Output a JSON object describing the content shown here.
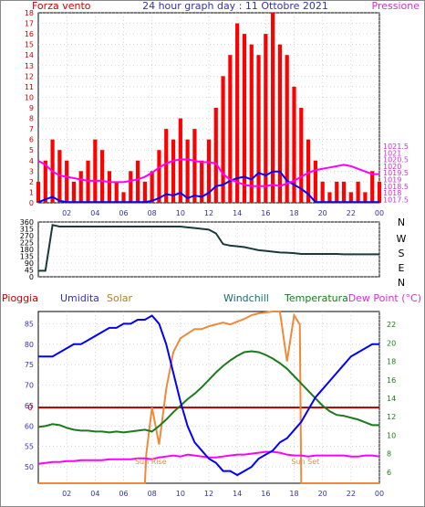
{
  "page_title": "24 hour graph day : 11 Ottobre 2021",
  "colors": {
    "wind": "#ff0000",
    "gust": "#0000ff",
    "pressure": "#ff00ff",
    "direction": "#1a3a3a",
    "humidity": "#0000ff",
    "solar": "#f08a3a",
    "temperature": "#1c7a1c",
    "dewpoint": "#ff00ff",
    "rain": "#aa0000",
    "axis_left_top": "#cc0000",
    "axis_right_top": "#cc33cc",
    "axis_left_bottom": "#3333aa",
    "axis_right_bottom": "#1c7a1c"
  },
  "chart_data": [
    {
      "type": "line",
      "id": "wind_pressure",
      "labels": {
        "left": "Forza vento",
        "right": "Pressione",
        "title": "24 hour graph day : 11 Ottobre 2021"
      },
      "x_ticks": [
        "02",
        "04",
        "06",
        "08",
        "10",
        "12",
        "14",
        "16",
        "18",
        "20",
        "22",
        "00"
      ],
      "xlim": [
        0,
        24
      ],
      "y_left": {
        "lim": [
          0,
          18
        ],
        "ticks": [
          0,
          1,
          2,
          3,
          4,
          5,
          6,
          7,
          8,
          9,
          10,
          11,
          12,
          13,
          14,
          15,
          16,
          17,
          18
        ]
      },
      "y_right": {
        "lim": [
          1017.25,
          1031.5
        ],
        "ticks": [
          "1017.5",
          "1018",
          "1018.5",
          "1019",
          "1019.5",
          "1020",
          "1020.5",
          "1021",
          "1021.5"
        ]
      },
      "series": [
        {
          "key": "wind_avg",
          "axis": "right",
          "x": [
            0,
            0.5,
            1,
            1.5,
            2,
            2.5,
            3,
            3.5,
            4,
            4.5,
            5,
            5.5,
            6,
            6.5,
            7,
            7.5,
            8,
            8.5,
            9,
            9.5,
            10,
            10.5,
            11,
            11.5,
            12,
            12.5,
            13,
            13.5,
            14,
            14.5,
            15,
            15.5,
            16,
            16.5,
            17,
            17.5,
            18,
            18.5,
            19,
            19.5,
            20,
            20.5,
            21,
            21.5,
            22,
            22.5,
            23,
            23.5,
            24
          ],
          "values": [
            1017.3,
            1017.5,
            1017.7,
            1017.4,
            1017.3,
            1017.3,
            1017.3,
            1017.3,
            1017.3,
            1017.3,
            1017.3,
            1017.3,
            1017.3,
            1017.3,
            1017.3,
            1017.3,
            1017.4,
            1017.6,
            1017.9,
            1017.8,
            1018.0,
            1017.6,
            1017.8,
            1017.7,
            1018.0,
            1018.5,
            1018.6,
            1018.9,
            1019.1,
            1019.2,
            1019.0,
            1019.5,
            1019.3,
            1019.6,
            1019.6,
            1018.9,
            1018.6,
            1018.3,
            1017.9,
            1017.3,
            1017.3,
            1017.3,
            1017.3,
            1017.3,
            1017.3,
            1017.3,
            1017.3,
            1017.3,
            1017.3
          ]
        },
        {
          "key": "pressure",
          "axis": "right",
          "x": [
            0,
            0.5,
            1,
            1.5,
            2,
            2.5,
            3,
            3.5,
            4,
            4.5,
            5,
            5.5,
            6,
            6.5,
            7,
            7.5,
            8,
            8.5,
            9,
            9.5,
            10,
            10.5,
            11,
            11.5,
            12,
            12.5,
            13,
            13.5,
            14,
            14.5,
            15,
            15.5,
            16,
            16.5,
            17,
            17.5,
            18,
            18.5,
            19,
            19.5,
            20,
            20.5,
            21,
            21.5,
            22,
            22.5,
            23,
            23.5,
            24
          ],
          "values": [
            1020.4,
            1020.1,
            1019.6,
            1019.3,
            1019.2,
            1019.1,
            1019.0,
            1018.9,
            1018.9,
            1018.9,
            1018.8,
            1018.8,
            1018.8,
            1018.9,
            1019.0,
            1019.2,
            1019.5,
            1019.9,
            1020.2,
            1020.4,
            1020.5,
            1020.5,
            1020.4,
            1020.3,
            1020.3,
            1020.2,
            1019.4,
            1019.0,
            1018.8,
            1018.6,
            1018.5,
            1018.5,
            1018.5,
            1018.6,
            1018.5,
            1018.7,
            1018.9,
            1019.2,
            1019.5,
            1019.7,
            1019.8,
            1019.9,
            1020.0,
            1020.1,
            1020.0,
            1019.8,
            1019.6,
            1019.4,
            1019.4
          ]
        }
      ],
      "bars": {
        "key": "wind_gust",
        "axis": "left",
        "x": [
          0,
          0.5,
          1,
          1.5,
          2,
          2.5,
          3,
          3.5,
          4,
          4.5,
          5,
          5.5,
          6,
          6.5,
          7,
          7.5,
          8,
          8.5,
          9,
          9.5,
          10,
          10.5,
          11,
          11.5,
          12,
          12.5,
          13,
          13.5,
          14,
          14.5,
          15,
          15.5,
          16,
          16.5,
          17,
          17.5,
          18,
          18.5,
          19,
          19.5,
          20,
          20.5,
          21,
          21.5,
          22,
          22.5,
          23,
          23.5,
          24
        ],
        "values": [
          2,
          4,
          6,
          5,
          4,
          2,
          3,
          4,
          6,
          5,
          3,
          2,
          1,
          3,
          4,
          2,
          3,
          5,
          7,
          6,
          8,
          6,
          7,
          4,
          6,
          9,
          12,
          14,
          17,
          16,
          15,
          14,
          16,
          18,
          15,
          14,
          11,
          9,
          6,
          4,
          2,
          1,
          2,
          2,
          1,
          2,
          1,
          3,
          2
        ]
      }
    },
    {
      "type": "line",
      "id": "wind_direction",
      "x_ticks": [
        "02",
        "04",
        "06",
        "08",
        "10",
        "12",
        "14",
        "16",
        "18",
        "20",
        "22",
        "00"
      ],
      "xlim": [
        0,
        24
      ],
      "y_left": {
        "lim": [
          0,
          360
        ],
        "ticks": [
          "0",
          "45",
          "90",
          "135",
          "180",
          "225",
          "270",
          "315",
          "360"
        ]
      },
      "y_right_labels": [
        "N",
        "W",
        "S",
        "E",
        "N"
      ],
      "series": [
        {
          "key": "direction",
          "x": [
            0,
            0.5,
            1,
            1.5,
            2,
            2.5,
            3,
            3.5,
            4,
            4.5,
            5,
            5.5,
            6,
            6.5,
            7,
            7.5,
            8,
            8.5,
            9,
            9.5,
            10,
            10.5,
            11,
            11.5,
            12,
            12.5,
            13,
            13.5,
            14,
            14.5,
            15,
            15.5,
            16,
            16.5,
            17,
            17.5,
            18,
            18.5,
            19,
            19.5,
            20,
            20.5,
            21,
            21.5,
            22,
            22.5,
            23,
            23.5,
            24
          ],
          "values": [
            40,
            40,
            340,
            330,
            330,
            330,
            330,
            330,
            330,
            330,
            330,
            330,
            330,
            330,
            330,
            330,
            330,
            330,
            330,
            330,
            330,
            325,
            320,
            315,
            310,
            285,
            215,
            205,
            200,
            195,
            185,
            175,
            170,
            165,
            160,
            158,
            155,
            150,
            150,
            150,
            150,
            150,
            150,
            148,
            148,
            148,
            148,
            148,
            148
          ]
        }
      ]
    },
    {
      "type": "line",
      "id": "temp_humidity",
      "labels": {
        "rain": "Pioggia",
        "humidity": "Umidita",
        "solar": "Solar",
        "windchill": "Windchill",
        "temperature": "Temperatura",
        "dewpoint": "Dew Point (°C)",
        "rain_zero": "0",
        "sun_rise": "Sun Rise",
        "sun_set": "Sun Set"
      },
      "x_ticks": [
        "02",
        "04",
        "06",
        "08",
        "10",
        "12",
        "14",
        "16",
        "18",
        "20",
        "22",
        "00"
      ],
      "xlim": [
        0,
        24
      ],
      "y_left": {
        "lim": [
          46,
          88
        ],
        "ticks": [
          "50",
          "55",
          "60",
          "65",
          "70",
          "75",
          "80",
          "85"
        ]
      },
      "y_right": {
        "lim": [
          4.8,
          23.4
        ],
        "ticks": [
          "6",
          "8",
          "10",
          "12",
          "14",
          "16",
          "18",
          "20",
          "22"
        ]
      },
      "series": [
        {
          "key": "humidity",
          "axis": "left",
          "x": [
            0,
            0.5,
            1,
            1.5,
            2,
            2.5,
            3,
            3.5,
            4,
            4.5,
            5,
            5.5,
            6,
            6.5,
            7,
            7.5,
            8,
            8.5,
            9,
            9.5,
            10,
            10.5,
            11,
            11.5,
            12,
            12.5,
            13,
            13.5,
            14,
            14.5,
            15,
            15.5,
            16,
            16.5,
            17,
            17.5,
            18,
            18.5,
            19,
            19.5,
            20,
            20.5,
            21,
            21.5,
            22,
            22.5,
            23,
            23.5,
            24
          ],
          "values": [
            77,
            77,
            77,
            78,
            79,
            80,
            80,
            81,
            82,
            83,
            84,
            84,
            85,
            85,
            86,
            86,
            87,
            85,
            80,
            73,
            66,
            60,
            56,
            54,
            52,
            51,
            49,
            49,
            48,
            49,
            50,
            52,
            53,
            54,
            56,
            57,
            59,
            61,
            64,
            67,
            69,
            71,
            73,
            75,
            77,
            78,
            79,
            80,
            80
          ]
        },
        {
          "key": "solar",
          "axis": "right",
          "x": [
            0,
            0.5,
            1,
            1.5,
            2,
            2.5,
            3,
            3.5,
            4,
            4.5,
            5,
            5.5,
            6,
            6.5,
            7,
            7.5,
            7.6,
            8,
            8.5,
            9,
            9.5,
            10,
            10.5,
            11,
            11.5,
            12,
            12.5,
            13,
            13.5,
            14,
            14.5,
            15,
            15.5,
            16,
            16.5,
            17,
            17.5,
            18,
            18.4,
            18.5,
            19,
            19.5,
            20,
            20.5,
            21,
            21.5,
            22,
            22.5,
            23,
            23.5,
            24
          ],
          "values": [
            4.8,
            4.8,
            4.8,
            4.8,
            4.8,
            4.8,
            4.8,
            4.8,
            4.8,
            4.8,
            4.8,
            4.8,
            4.8,
            4.8,
            4.8,
            4.8,
            8.0,
            13.0,
            9.0,
            15.0,
            19.0,
            20.5,
            21.0,
            21.5,
            21.5,
            21.8,
            22.0,
            22.2,
            22.0,
            22.3,
            22.6,
            23.0,
            23.2,
            23.3,
            23.4,
            23.4,
            18.0,
            23.0,
            22.0,
            4.8,
            4.8,
            4.8,
            4.8,
            4.8,
            4.8,
            4.8,
            4.8,
            4.8,
            4.8,
            4.8,
            4.8
          ]
        },
        {
          "key": "temperature",
          "axis": "right",
          "x": [
            0,
            0.5,
            1,
            1.5,
            2,
            2.5,
            3,
            3.5,
            4,
            4.5,
            5,
            5.5,
            6,
            6.5,
            7,
            7.5,
            8,
            8.5,
            9,
            9.5,
            10,
            10.5,
            11,
            11.5,
            12,
            12.5,
            13,
            13.5,
            14,
            14.5,
            15,
            15.5,
            16,
            16.5,
            17,
            17.5,
            18,
            18.5,
            19,
            19.5,
            20,
            20.5,
            21,
            21.5,
            22,
            22.5,
            23,
            23.5,
            24
          ],
          "values": [
            10.9,
            11.0,
            11.2,
            11.1,
            10.8,
            10.6,
            10.5,
            10.5,
            10.4,
            10.4,
            10.3,
            10.4,
            10.3,
            10.4,
            10.5,
            10.6,
            10.4,
            11.0,
            11.7,
            12.5,
            13.2,
            13.9,
            14.5,
            15.2,
            16.0,
            16.8,
            17.5,
            18.1,
            18.6,
            19.0,
            19.1,
            19.0,
            18.7,
            18.3,
            17.8,
            17.2,
            16.4,
            15.6,
            14.8,
            14.0,
            13.2,
            12.6,
            12.2,
            12.1,
            11.9,
            11.7,
            11.4,
            11.1,
            11.1
          ]
        },
        {
          "key": "dewpoint",
          "axis": "right",
          "x": [
            0,
            0.5,
            1,
            1.5,
            2,
            2.5,
            3,
            3.5,
            4,
            4.5,
            5,
            5.5,
            6,
            6.5,
            7,
            7.5,
            8,
            8.5,
            9,
            9.5,
            10,
            10.5,
            11,
            11.5,
            12,
            12.5,
            13,
            13.5,
            14,
            14.5,
            15,
            15.5,
            16,
            16.5,
            17,
            17.5,
            18,
            18.5,
            19,
            19.5,
            20,
            20.5,
            21,
            21.5,
            22,
            22.5,
            23,
            23.5,
            24
          ],
          "values": [
            6.9,
            7.0,
            7.1,
            7.1,
            7.2,
            7.2,
            7.3,
            7.3,
            7.3,
            7.3,
            7.4,
            7.4,
            7.4,
            7.4,
            7.5,
            7.5,
            7.4,
            7.6,
            7.7,
            7.8,
            7.7,
            7.9,
            7.8,
            7.7,
            7.6,
            7.6,
            7.7,
            7.8,
            7.9,
            7.9,
            8.0,
            8.1,
            8.2,
            8.2,
            8.1,
            7.9,
            7.8,
            7.8,
            7.7,
            7.8,
            7.8,
            7.8,
            7.8,
            7.8,
            7.7,
            7.7,
            7.8,
            7.8,
            7.7
          ]
        }
      ],
      "rain_baseline": 0
    }
  ]
}
